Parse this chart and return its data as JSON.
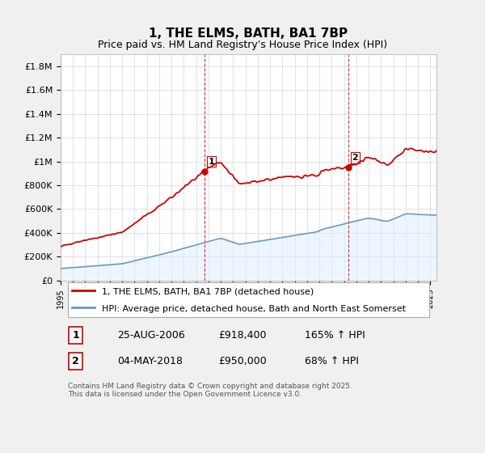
{
  "title": "1, THE ELMS, BATH, BA1 7BP",
  "subtitle": "Price paid vs. HM Land Registry's House Price Index (HPI)",
  "ylabel_ticks": [
    "£0",
    "£200K",
    "£400K",
    "£600K",
    "£800K",
    "£1M",
    "£1.2M",
    "£1.4M",
    "£1.6M",
    "£1.8M"
  ],
  "ytick_values": [
    0,
    200000,
    400000,
    600000,
    800000,
    1000000,
    1200000,
    1400000,
    1600000,
    1800000
  ],
  "ylim": [
    0,
    1900000
  ],
  "xlim_start": 1995,
  "xlim_end": 2025.5,
  "sale1_year": 2006.65,
  "sale1_price": 918400,
  "sale2_year": 2018.33,
  "sale2_price": 950000,
  "legend_line1": "1, THE ELMS, BATH, BA1 7BP (detached house)",
  "legend_line2": "HPI: Average price, detached house, Bath and North East Somerset",
  "annotation1_label": "1",
  "annotation1_date": "25-AUG-2006",
  "annotation1_price": "£918,400",
  "annotation1_hpi": "165% ↑ HPI",
  "annotation2_label": "2",
  "annotation2_date": "04-MAY-2018",
  "annotation2_price": "£950,000",
  "annotation2_hpi": "68% ↑ HPI",
  "copyright": "Contains HM Land Registry data © Crown copyright and database right 2025.\nThis data is licensed under the Open Government Licence v3.0.",
  "line_color_property": "#cc0000",
  "line_color_hpi": "#6699cc",
  "fill_color_hpi": "#ddeeff",
  "background_color": "#f0f4ff",
  "plot_bg_color": "#ffffff",
  "vline_color": "#cc0000",
  "title_fontsize": 11,
  "subtitle_fontsize": 9.5
}
